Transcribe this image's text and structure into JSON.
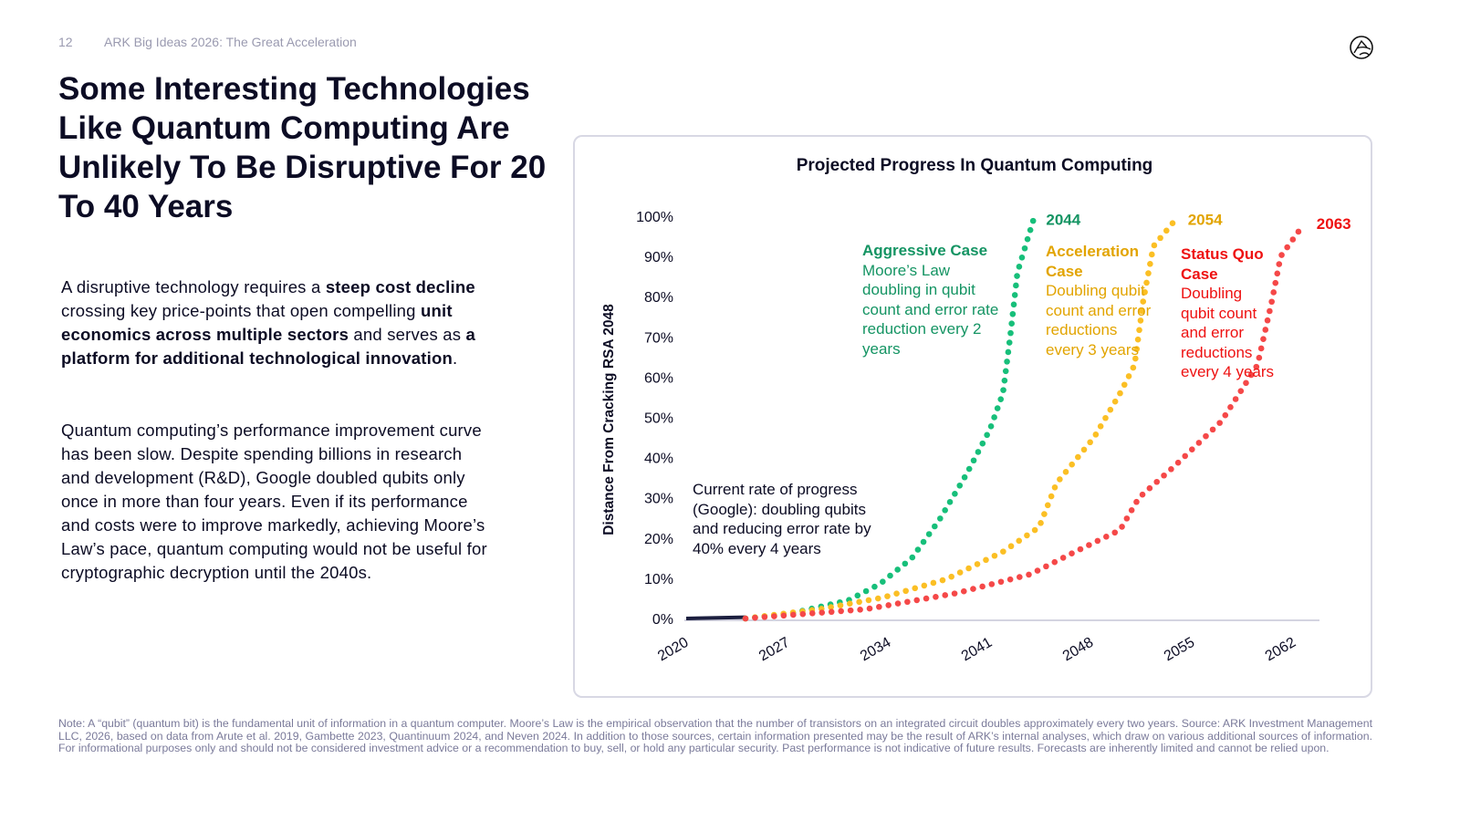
{
  "header": {
    "page_number": "12",
    "deck_title": "ARK Big Ideas 2026: The Great Acceleration"
  },
  "title": "Some Interesting Technologies Like Quantum Computing Are Unlikely To Be Disruptive For 20 To 40 Years",
  "paragraph1": {
    "t1": "A disruptive technology requires a ",
    "b1": "steep cost decline",
    "t2": " crossing key price-points that open compelling ",
    "b2": "unit economics across multiple sectors",
    "t3": " and serves as ",
    "b3": "a platform for additional technological innovation",
    "t4": "."
  },
  "paragraph2": "Quantum computing’s performance improvement curve has been slow. Despite spending billions in research and development (R&D), Google doubled qubits only once in more than four years. Even if its performance and costs were to improve markedly, achieving Moore’s Law’s pace, quantum computing would not be useful for cryptographic decryption until the 2040s.",
  "note": "Note: A “qubit” (quantum bit) is the fundamental unit of information in a quantum computer. Moore’s Law is the empirical observation that the number of transistors on an integrated circuit doubles approximately every two years. Source: ARK Investment Management LLC, 2026, based on data from Arute et al. 2019, Gambette 2023, Quantinuum 2024, and Neven 2024. In addition to those sources, certain information presented may be the result of ARK’s internal analyses, which draw on various additional sources of information. For informational purposes only and should not be considered investment advice or a recommendation to buy, sell, or hold any particular security. Past performance is not indicative of future results. Forecasts are inherently limited and cannot be relied upon.",
  "chart_data": {
    "type": "line",
    "title": "Projected Progress In Quantum Computing",
    "ylabel": "Distance From Cracking RSA 2048",
    "xlabel": "",
    "xlim": [
      2020,
      2064
    ],
    "ylim": [
      0,
      100
    ],
    "x_ticks": [
      "2020",
      "2027",
      "2034",
      "2041",
      "2048",
      "2055",
      "2062"
    ],
    "y_ticks": [
      "0%",
      "10%",
      "20%",
      "30%",
      "40%",
      "50%",
      "60%",
      "70%",
      "80%",
      "90%",
      "100%"
    ],
    "series": [
      {
        "name": "Current rate of progress (Google)",
        "color": "#1c1f3f",
        "style": "solid",
        "points": [
          [
            2020,
            0
          ],
          [
            2024.1,
            0.3
          ]
        ],
        "annotation": "Current rate of progress (Google): doubling qubits and reducing error rate by 40% every 4 years"
      },
      {
        "name": "Aggressive Case",
        "color": "#17bf7a",
        "label_color": "#149463",
        "style": "dotted",
        "end_label": "2044",
        "description": "Moore’s Law doubling in qubit count and error rate reduction every 2 years",
        "points": [
          [
            2024.1,
            0
          ],
          [
            2027.4,
            1.4
          ],
          [
            2031.2,
            4.5
          ],
          [
            2033.4,
            8.6
          ],
          [
            2035.6,
            15
          ],
          [
            2037.5,
            24.5
          ],
          [
            2039.4,
            36
          ],
          [
            2041,
            47
          ],
          [
            2041.9,
            56
          ],
          [
            2042.4,
            70
          ],
          [
            2042.9,
            86
          ],
          [
            2044,
            99
          ]
        ]
      },
      {
        "name": "Acceleration Case",
        "color": "#fbbf24",
        "label_color": "#e2a400",
        "style": "dotted",
        "end_label": "2054",
        "description": "Doubling qubit count and error reductions every 3 years",
        "points": [
          [
            2024.1,
            0
          ],
          [
            2029.2,
            2.3
          ],
          [
            2033.6,
            5.2
          ],
          [
            2038,
            9.8
          ],
          [
            2041.9,
            16.6
          ],
          [
            2044.4,
            22.7
          ],
          [
            2045.6,
            33.6
          ],
          [
            2048.2,
            45
          ],
          [
            2050,
            56
          ],
          [
            2051,
            63
          ],
          [
            2051.6,
            79
          ],
          [
            2052.3,
            92.5
          ],
          [
            2053.8,
            99
          ]
        ]
      },
      {
        "name": "Status Quo Case",
        "color": "#f54848",
        "label_color": "#ee1111",
        "style": "dotted",
        "end_label": "2063",
        "description": "Doubling qubit count and error reductions every 4 years",
        "points": [
          [
            2024.1,
            0
          ],
          [
            2032.4,
            2.3
          ],
          [
            2038.7,
            6.3
          ],
          [
            2043.8,
            11
          ],
          [
            2046.9,
            16.6
          ],
          [
            2050,
            22
          ],
          [
            2051.3,
            30
          ],
          [
            2053.8,
            38
          ],
          [
            2057,
            49
          ],
          [
            2059.5,
            63
          ],
          [
            2060.5,
            79
          ],
          [
            2061.1,
            90
          ],
          [
            2062.7,
            98
          ]
        ]
      }
    ]
  },
  "colors": {
    "title": "#0c0c24",
    "muted": "#9a9ab0"
  }
}
